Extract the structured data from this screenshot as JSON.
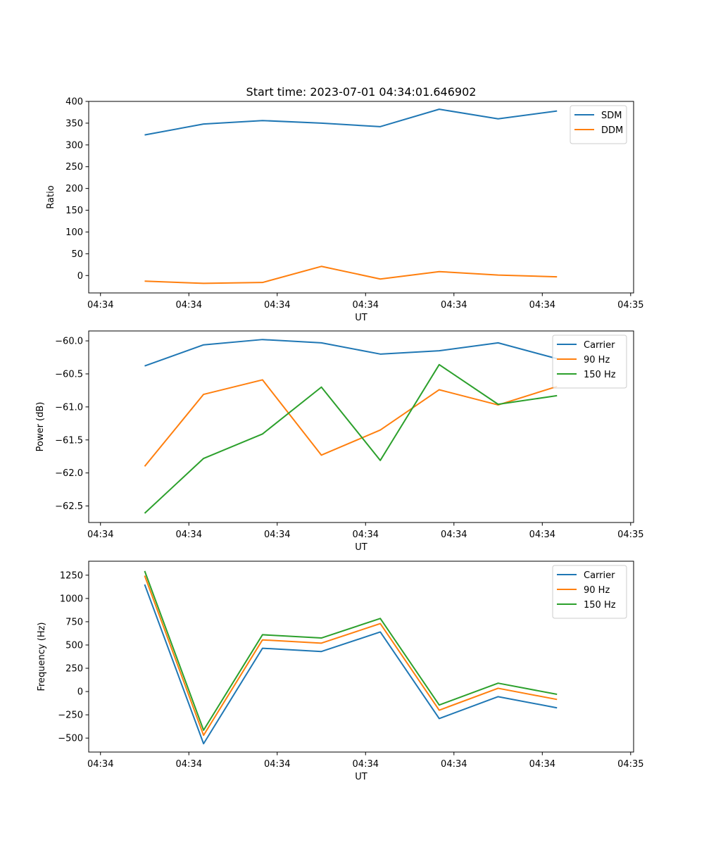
{
  "figure": {
    "title": "Start time: 2023-07-01 04:34:01.646902"
  },
  "chart_data": [
    {
      "type": "line",
      "title": "Start time: 2023-07-01 04:34:01.646902",
      "xlabel": "UT",
      "ylabel": "Ratio",
      "xlim": [
        -0.95,
        8.3
      ],
      "ylim": [
        -40,
        400
      ],
      "xticks": [
        -0.75,
        0.75,
        2.25,
        3.75,
        5.25,
        6.75,
        8.25
      ],
      "xticklabels": [
        "04:34",
        "04:34",
        "04:34",
        "04:34",
        "04:34",
        "04:34",
        "04:35"
      ],
      "yticks": [
        0,
        50,
        100,
        150,
        200,
        250,
        300,
        350,
        400
      ],
      "yticklabels": [
        "0",
        "50",
        "100",
        "150",
        "200",
        "250",
        "300",
        "350",
        "400"
      ],
      "x": [
        0,
        1,
        2,
        3,
        4,
        5,
        6,
        7
      ],
      "legend": "top-right",
      "series": [
        {
          "name": "SDM",
          "color": "#1f77b4",
          "values": [
            323,
            348,
            356,
            350,
            342,
            382,
            360,
            378
          ]
        },
        {
          "name": "DDM",
          "color": "#ff7f0e",
          "values": [
            -13,
            -18,
            -16,
            21,
            -8,
            9,
            1,
            -3
          ]
        }
      ]
    },
    {
      "type": "line",
      "xlabel": "UT",
      "ylabel": "Power (dB)",
      "xlim": [
        -0.95,
        8.3
      ],
      "ylim": [
        -62.75,
        -59.85
      ],
      "xticks": [
        -0.75,
        0.75,
        2.25,
        3.75,
        5.25,
        6.75,
        8.25
      ],
      "xticklabels": [
        "04:34",
        "04:34",
        "04:34",
        "04:34",
        "04:34",
        "04:34",
        "04:35"
      ],
      "yticks": [
        -62.5,
        -62.0,
        -61.5,
        -61.0,
        -60.5,
        -60.0
      ],
      "yticklabels": [
        "−62.5",
        "−62.0",
        "−61.5",
        "−61.0",
        "−60.5",
        "−60.0"
      ],
      "x": [
        0,
        1,
        2,
        3,
        4,
        5,
        6,
        7
      ],
      "legend": "top-right",
      "series": [
        {
          "name": "Carrier",
          "color": "#1f77b4",
          "values": [
            -60.38,
            -60.06,
            -59.98,
            -60.03,
            -60.2,
            -60.15,
            -60.03,
            -60.27
          ]
        },
        {
          "name": "90 Hz",
          "color": "#ff7f0e",
          "values": [
            -61.9,
            -60.81,
            -60.59,
            -61.73,
            -61.35,
            -60.74,
            -60.97,
            -60.69
          ]
        },
        {
          "name": "150 Hz",
          "color": "#2ca02c",
          "values": [
            -62.61,
            -61.78,
            -61.41,
            -60.7,
            -61.81,
            -60.36,
            -60.96,
            -60.83
          ]
        }
      ]
    },
    {
      "type": "line",
      "xlabel": "UT",
      "ylabel": "Frequency (Hz)",
      "xlim": [
        -0.95,
        8.3
      ],
      "ylim": [
        -650,
        1400
      ],
      "xticks": [
        -0.75,
        0.75,
        2.25,
        3.75,
        5.25,
        6.75,
        8.25
      ],
      "xticklabels": [
        "04:34",
        "04:34",
        "04:34",
        "04:34",
        "04:34",
        "04:34",
        "04:35"
      ],
      "yticks": [
        -500,
        -250,
        0,
        250,
        500,
        750,
        1000,
        1250
      ],
      "yticklabels": [
        "−500",
        "−250",
        "0",
        "250",
        "500",
        "750",
        "1000",
        "1250"
      ],
      "x": [
        0,
        1,
        2,
        3,
        4,
        5,
        6,
        7
      ],
      "legend": "top-right",
      "series": [
        {
          "name": "Carrier",
          "color": "#1f77b4",
          "values": [
            1150,
            -560,
            465,
            430,
            640,
            -290,
            -55,
            -175
          ]
        },
        {
          "name": "90 Hz",
          "color": "#ff7f0e",
          "values": [
            1245,
            -470,
            555,
            520,
            730,
            -200,
            35,
            -85
          ]
        },
        {
          "name": "150 Hz",
          "color": "#2ca02c",
          "values": [
            1295,
            -415,
            610,
            575,
            785,
            -145,
            90,
            -30
          ]
        }
      ]
    }
  ]
}
